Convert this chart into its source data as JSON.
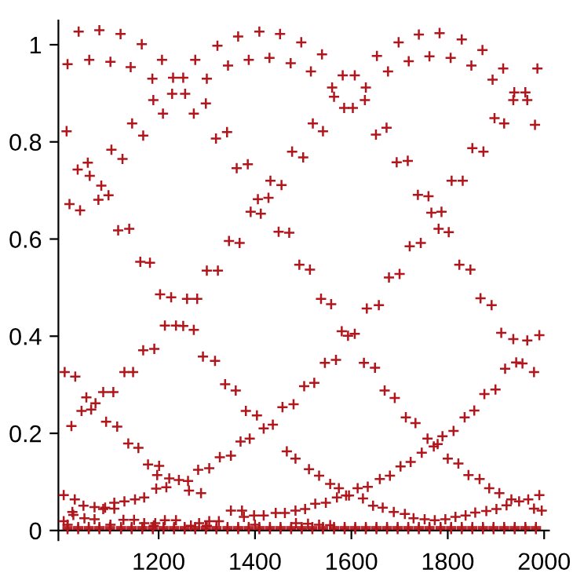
{
  "chart_data": {
    "type": "scatter",
    "marker": "cross",
    "grid": false,
    "legend": false,
    "xlim": [
      992,
      2010
    ],
    "ylim": [
      -0.02,
      1.05
    ],
    "xticks": [
      1200,
      1400,
      1600,
      1800,
      2000
    ],
    "yticks": [
      0,
      0.2,
      0.4,
      0.6,
      0.8,
      1
    ],
    "series": [
      {
        "color": "#b0161b",
        "x": [
          1011,
          1034,
          1056,
          1077,
          1100,
          1121,
          1142,
          1165,
          1187,
          1207,
          1230,
          1251,
          1276,
          1300,
          1322,
          1344,
          1365,
          1387,
          1409,
          1430,
          1452,
          1474,
          1009,
          1032,
          1015,
          1037,
          1053,
          1057,
          1075,
          1081,
          1096,
          1102,
          1116,
          1125,
          1139,
          1145,
          1162,
          1168,
          1182,
          1189,
          1209,
          1228,
          1255,
          1273,
          1298,
          1300,
          1319,
          1323,
          1342,
          1346,
          1362,
          1368,
          1385,
          1391,
          1406,
          1412,
          1428,
          1432,
          1449,
          1455,
          1471,
          1477,
          1496,
          1516,
          1539,
          1560,
          1564,
          1582,
          1607,
          1585,
          1603,
          1630,
          1628,
          1653,
          1676,
          1698,
          1719,
          1740,
          1762,
          1783,
          1806,
          1829,
          1849,
          1872,
          1893,
          1915,
          1938,
          1961,
          1936,
          1965,
          1986,
          1981,
          1897,
          1917,
          1520,
          1541,
          1651,
          1673,
          1500,
          1694,
          1717,
          1851,
          1874,
          1808,
          1831,
          1738,
          1760,
          1766,
          1787,
          1781,
          1802,
          1721,
          1744,
          1492,
          1514,
          1678,
          1700,
          1824,
          1847,
          1203,
          1226,
          1259,
          1280,
          1213,
          1236,
          1251,
          1273,
          1005,
          1027,
          1019,
          1040,
          1050,
          1060,
          1069,
          1085,
          1106,
          1091,
          1114,
          1129,
          1147,
          1137,
          1158,
          1168,
          1191,
          1178,
          1201,
          1222,
          1242,
          1263,
          1288,
          1292,
          1317,
          1338,
          1360,
          1381,
          1404,
          1197,
          1003,
          1026,
          1021,
          1044,
          1067,
          1089,
          1108,
          1129,
          1151,
          1170,
          1195,
          1216,
          1261,
          1282,
          1305,
          1327,
          1350,
          1370,
          1389,
          1418,
          1437,
          1457,
          1480,
          1466,
          1484,
          1003,
          1023,
          1046,
          1067,
          1085,
          1108,
          1127,
          1149,
          1170,
          1193,
          1213,
          1236,
          1267,
          1284,
          1305,
          1325,
          1350,
          1373,
          1377,
          1398,
          1418,
          1443,
          1462,
          1484,
          1537,
          1558,
          1632,
          1657,
          1580,
          1593,
          1607,
          1545,
          1568,
          1626,
          1649,
          1502,
          1523,
          1669,
          1690,
          1713,
          1733,
          1758,
          1771,
          1779,
          1789,
          1812,
          1746,
          1723,
          1702,
          1680,
          1659,
          1634,
          1613,
          1595,
          1574,
          1556,
          1533,
          1512,
          1835,
          1855,
          1876,
          1899,
          1919,
          1942,
          1955,
          1979,
          1911,
          1936,
          1965,
          1990,
          1868,
          1891,
          1800,
          1822,
          1843,
          1866,
          1886,
          1907,
          1932,
          1967,
          1948,
          1979,
          1995,
          1990,
          1504,
          1525,
          1547,
          1570,
          1589,
          1624,
          1645,
          1665,
          1688,
          1711,
          1729,
          1752,
          1773,
          1795,
          1816,
          1837,
          1857,
          1880,
          1901,
          1922,
          1485,
          1510,
          1533,
          1556,
          1011,
          1100,
          1190,
          1300,
          1400,
          1011,
          1033,
          1055,
          1077,
          1099,
          1122,
          1144,
          1166,
          1188,
          1210,
          1232,
          1254,
          1276,
          1298,
          1320,
          1343,
          1365,
          1387,
          1409,
          1431,
          1453,
          1475,
          1497,
          1519,
          1541,
          1564,
          1586,
          1608,
          1630,
          1652,
          1674,
          1696,
          1718,
          1740,
          1762,
          1785,
          1807,
          1829,
          1851,
          1873,
          1895,
          1917,
          1939,
          1961,
          1983,
          1011,
          1033,
          1055,
          1077,
          1099,
          1122,
          1144,
          1166,
          1188,
          1210,
          1232,
          1254,
          1276,
          1298,
          1320,
          1343,
          1365,
          1387,
          1409,
          1431,
          1453,
          1475,
          1497,
          1519,
          1541,
          1564,
          1586,
          1608,
          1630,
          1652,
          1674,
          1696,
          1718,
          1740,
          1762,
          1785,
          1807,
          1829,
          1851,
          1873,
          1895,
          1917,
          1939,
          1961,
          1983
        ],
        "values": [
          0.96,
          1.027,
          0.969,
          1.03,
          0.965,
          1.022,
          0.954,
          1.001,
          0.93,
          0.969,
          0.932,
          0.932,
          0.969,
          0.93,
          0.998,
          0.957,
          1.017,
          0.969,
          1.027,
          0.973,
          1.022,
          0.962,
          0.822,
          0.743,
          0.672,
          0.659,
          0.757,
          0.73,
          0.681,
          0.71,
          0.69,
          0.784,
          0.618,
          0.765,
          0.621,
          0.838,
          0.553,
          0.813,
          0.551,
          0.886,
          0.858,
          0.899,
          0.899,
          0.858,
          0.879,
          0.535,
          0.807,
          0.535,
          0.82,
          0.596,
          0.746,
          0.592,
          0.754,
          0.656,
          0.682,
          0.652,
          0.685,
          0.72,
          0.615,
          0.711,
          0.613,
          0.78,
          1.005,
          0.945,
          0.98,
          0.912,
          0.893,
          0.937,
          0.937,
          0.87,
          0.87,
          0.912,
          0.886,
          0.977,
          0.945,
          1.005,
          0.966,
          1.021,
          0.976,
          1.024,
          0.973,
          1.011,
          0.957,
          0.989,
          0.928,
          0.951,
          0.902,
          0.902,
          0.886,
          0.886,
          0.951,
          0.835,
          0.849,
          0.838,
          0.838,
          0.822,
          0.815,
          0.829,
          0.768,
          0.758,
          0.761,
          0.787,
          0.78,
          0.72,
          0.72,
          0.691,
          0.688,
          0.654,
          0.656,
          0.621,
          0.614,
          0.585,
          0.592,
          0.547,
          0.537,
          0.521,
          0.528,
          0.547,
          0.537,
          0.486,
          0.48,
          0.477,
          0.477,
          0.422,
          0.422,
          0.421,
          0.413,
          0.326,
          0.317,
          0.215,
          0.246,
          0.274,
          0.249,
          0.262,
          0.285,
          0.285,
          0.224,
          0.214,
          0.326,
          0.326,
          0.179,
          0.17,
          0.371,
          0.374,
          0.136,
          0.133,
          0.107,
          0.104,
          0.082,
          0.077,
          0.358,
          0.349,
          0.301,
          0.288,
          0.246,
          0.237,
          0.114,
          0.073,
          0.064,
          0.038,
          0.051,
          0.048,
          0.047,
          0.057,
          0.06,
          0.064,
          0.068,
          0.086,
          0.089,
          0.102,
          0.125,
          0.128,
          0.151,
          0.154,
          0.183,
          0.189,
          0.21,
          0.218,
          0.254,
          0.26,
          0.163,
          0.148,
          0.019,
          0.032,
          0.025,
          0.023,
          0.044,
          0.045,
          0.022,
          0.022,
          0.015,
          0.015,
          0.021,
          0.021,
          0.01,
          0.015,
          0.019,
          0.019,
          0.041,
          0.041,
          0.028,
          0.031,
          0.031,
          0.036,
          0.036,
          0.041,
          0.477,
          0.466,
          0.457,
          0.464,
          0.41,
          0.401,
          0.405,
          0.345,
          0.351,
          0.345,
          0.335,
          0.297,
          0.304,
          0.288,
          0.273,
          0.233,
          0.221,
          0.189,
          0.173,
          0.178,
          0.194,
          0.205,
          0.16,
          0.141,
          0.132,
          0.113,
          0.106,
          0.09,
          0.087,
          0.072,
          0.087,
          0.096,
          0.113,
          0.126,
          0.233,
          0.247,
          0.281,
          0.29,
          0.333,
          0.346,
          0.344,
          0.326,
          0.407,
          0.394,
          0.391,
          0.402,
          0.478,
          0.464,
          0.148,
          0.138,
          0.114,
          0.106,
          0.087,
          0.077,
          0.064,
          0.064,
          0.06,
          0.045,
          0.041,
          0.073,
          0.044,
          0.055,
          0.057,
          0.068,
          0.072,
          0.066,
          0.051,
          0.047,
          0.038,
          0.034,
          0.025,
          0.023,
          0.021,
          0.023,
          0.028,
          0.031,
          0.037,
          0.04,
          0.044,
          0.052,
          0.015,
          0.014,
          0.012,
          0.011,
          0.012,
          0.012,
          0.01,
          0.01,
          0.012,
          0.003,
          0.003,
          0.003,
          0.003,
          0.003,
          0.003,
          0.003,
          0.003,
          0.003,
          0.003,
          0.003,
          0.003,
          0.003,
          0.003,
          0.003,
          0.003,
          0.003,
          0.003,
          0.003,
          0.003,
          0.003,
          0.003,
          0.003,
          0.003,
          0.003,
          0.003,
          0.003,
          0.003,
          0.003,
          0.003,
          0.003,
          0.003,
          0.003,
          0.003,
          0.003,
          0.003,
          0.003,
          0.003,
          0.003,
          0.003,
          0.003,
          0.003,
          0.003,
          0.003,
          0.003,
          0.007,
          0.007,
          0.007,
          0.007,
          0.007,
          0.007,
          0.007,
          0.007,
          0.007,
          0.007,
          0.007,
          0.007,
          0.007,
          0.007,
          0.007,
          0.007,
          0.007,
          0.007,
          0.007,
          0.007,
          0.007,
          0.007,
          0.007,
          0.007,
          0.007,
          0.007,
          0.007,
          0.007,
          0.007,
          0.007,
          0.007,
          0.007,
          0.007,
          0.007,
          0.007,
          0.007,
          0.007,
          0.007,
          0.007,
          0.007,
          0.007,
          0.007,
          0.007,
          0.007,
          0.007
        ]
      }
    ]
  }
}
